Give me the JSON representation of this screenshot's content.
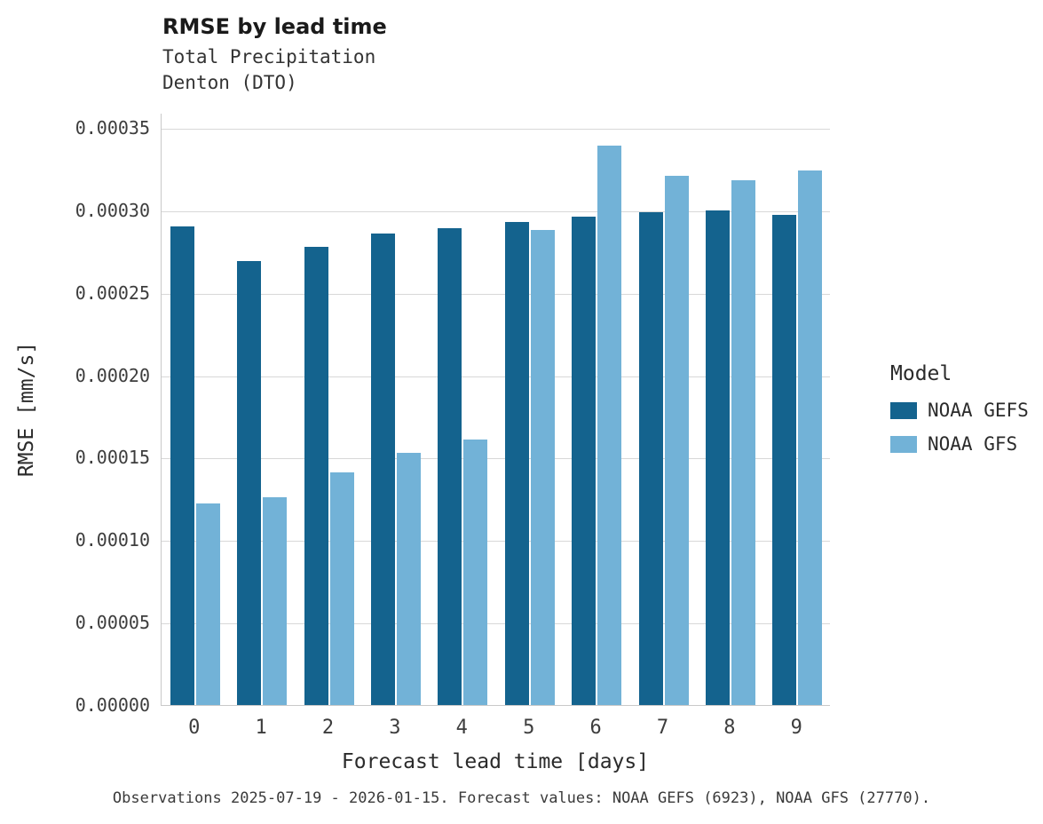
{
  "chart_data": {
    "type": "bar",
    "title": "RMSE by lead time",
    "subtitle": [
      "Total Precipitation",
      "Denton (DTO)"
    ],
    "xlabel": "Forecast lead time [days]",
    "ylabel": "RMSE [mm/s]",
    "categories": [
      "0",
      "1",
      "2",
      "3",
      "4",
      "5",
      "6",
      "7",
      "8",
      "9"
    ],
    "series": [
      {
        "name": "NOAA GEFS",
        "color": "#14638e",
        "values": [
          0.00029,
          0.000269,
          0.000278,
          0.000286,
          0.000289,
          0.000293,
          0.000296,
          0.000299,
          0.0003,
          0.000297
        ]
      },
      {
        "name": "NOAA GFS",
        "color": "#72b2d7",
        "values": [
          0.000122,
          0.000126,
          0.000141,
          0.000153,
          0.000161,
          0.000288,
          0.000339,
          0.000321,
          0.000318,
          0.000324
        ]
      }
    ],
    "ylim": [
      0,
      0.00035
    ],
    "yticks": [
      0,
      5e-05,
      0.0001,
      0.00015,
      0.0002,
      0.00025,
      0.0003,
      0.00035
    ],
    "ytick_labels": [
      "0.00000",
      "0.00005",
      "0.00010",
      "0.00015",
      "0.00020",
      "0.00025",
      "0.00030",
      "0.00035"
    ],
    "grid": true,
    "legend_position": "right",
    "legend_title": "Model",
    "caption": "Observations 2025-07-19 - 2026-01-15. Forecast values: NOAA GEFS (6923), NOAA GFS (27770)."
  }
}
